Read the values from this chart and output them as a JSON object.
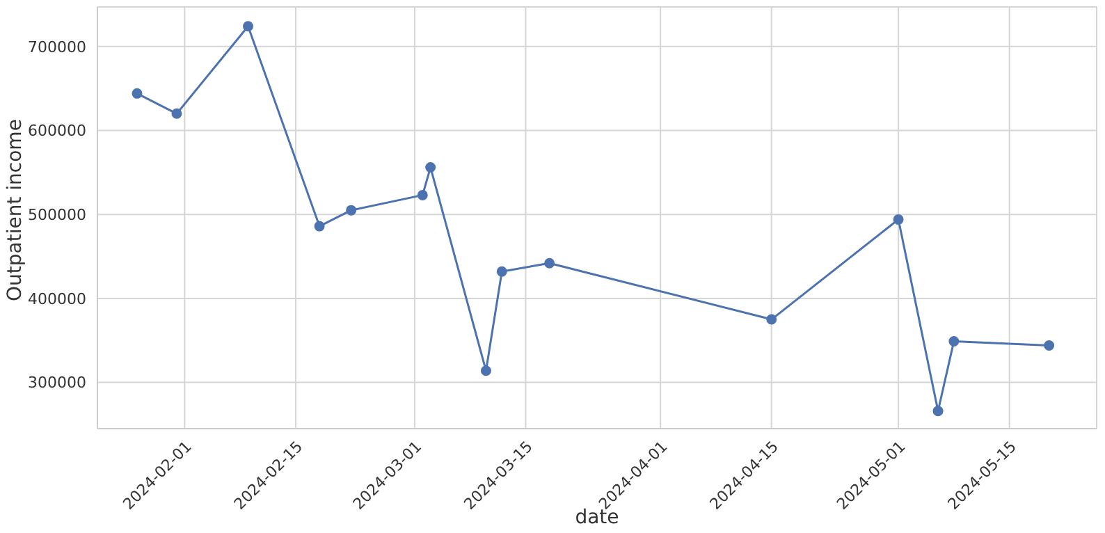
{
  "chart_data": {
    "type": "line",
    "xlabel": "date",
    "ylabel": "Outpatient income",
    "x": [
      "2024-01-26",
      "2024-01-31",
      "2024-02-09",
      "2024-02-18",
      "2024-02-22",
      "2024-03-02",
      "2024-03-03",
      "2024-03-10",
      "2024-03-12",
      "2024-03-18",
      "2024-04-15",
      "2024-05-01",
      "2024-05-06",
      "2024-05-08",
      "2024-05-20"
    ],
    "series": [
      {
        "color": "#4c72b0",
        "values": [
          644000,
          620000,
          724000,
          486000,
          505000,
          523000,
          556000,
          314000,
          432000,
          442000,
          375000,
          494000,
          266000,
          349000,
          344000
        ]
      }
    ],
    "xlim": [
      "2024-01-21",
      "2024-05-26"
    ],
    "xticks": [
      "2024-02-01",
      "2024-02-15",
      "2024-03-01",
      "2024-03-15",
      "2024-04-01",
      "2024-04-15",
      "2024-05-01",
      "2024-05-15"
    ],
    "ylim": [
      245000,
      747000
    ],
    "yticks": [
      300000,
      400000,
      500000,
      600000,
      700000
    ],
    "grid": true,
    "marker": "circle",
    "line_style": "solid"
  }
}
